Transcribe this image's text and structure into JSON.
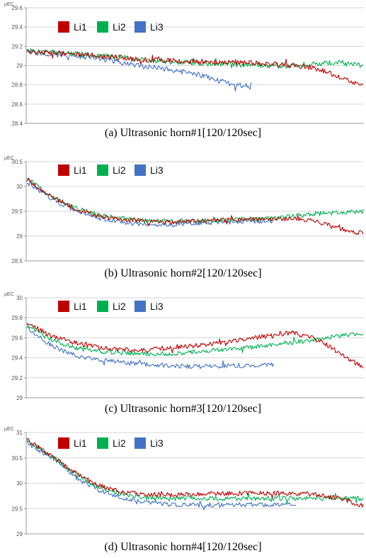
{
  "chart_data": [
    {
      "type": "line",
      "unit_label": "μEC",
      "caption": "(a) Ultrasonic horn#1[120/120sec]",
      "ylim": [
        28.4,
        29.6
      ],
      "yticks": [
        28.4,
        28.6,
        28.8,
        29,
        29.2,
        29.4,
        29.6
      ],
      "grid": true,
      "legend_position": "top-left",
      "series": [
        {
          "name": "Li1",
          "color": "#c00000",
          "values": [
            29.15,
            29.13,
            29.12,
            29.1,
            29.08,
            29.06,
            29.05,
            29.04,
            29.03,
            29.03,
            29.02,
            29.0,
            28.98,
            28.88,
            28.78
          ]
        },
        {
          "name": "Li2",
          "color": "#00b050",
          "values": [
            29.16,
            29.14,
            29.12,
            29.1,
            29.08,
            29.06,
            29.04,
            29.03,
            29.02,
            29.01,
            29.0,
            29.0,
            29.02,
            29.03,
            29.0
          ]
        },
        {
          "name": "Li3",
          "color": "#4472c4",
          "values": [
            29.14,
            29.12,
            29.1,
            29.07,
            29.02,
            28.98,
            28.95,
            28.9,
            28.82,
            28.78
          ]
        }
      ]
    },
    {
      "type": "line",
      "unit_label": "μEC",
      "caption": "(b) Ultrasonic horn#2[120/120sec]",
      "ylim": [
        28.5,
        30.5
      ],
      "yticks": [
        28.5,
        29,
        29.5,
        30,
        30.5
      ],
      "grid": true,
      "legend_position": "top-left",
      "series": [
        {
          "name": "Li1",
          "color": "#c00000",
          "values": [
            30.15,
            29.8,
            29.55,
            29.4,
            29.33,
            29.3,
            29.28,
            29.3,
            29.32,
            29.33,
            29.34,
            29.35,
            29.3,
            29.15,
            29.05
          ]
        },
        {
          "name": "Li2",
          "color": "#00b050",
          "values": [
            30.15,
            29.82,
            29.57,
            29.42,
            29.35,
            29.31,
            29.3,
            29.3,
            29.32,
            29.34,
            29.35,
            29.4,
            29.45,
            29.48,
            29.5
          ]
        },
        {
          "name": "Li3",
          "color": "#4472c4",
          "values": [
            30.1,
            29.75,
            29.5,
            29.35,
            29.27,
            29.23,
            29.23,
            29.25,
            29.28,
            29.3,
            29.3
          ]
        }
      ]
    },
    {
      "type": "line",
      "unit_label": "μEC",
      "caption": "(c) Ultrasonic horn#3[120/120sec]",
      "ylim": [
        29,
        30
      ],
      "yticks": [
        29,
        29.2,
        29.4,
        29.6,
        29.8,
        30
      ],
      "grid": true,
      "legend_position": "top-left",
      "series": [
        {
          "name": "Li1",
          "color": "#c00000",
          "values": [
            29.75,
            29.62,
            29.55,
            29.5,
            29.48,
            29.48,
            29.5,
            29.52,
            29.55,
            29.58,
            29.62,
            29.65,
            29.6,
            29.45,
            29.3
          ]
        },
        {
          "name": "Li2",
          "color": "#00b050",
          "values": [
            29.73,
            29.58,
            29.5,
            29.46,
            29.45,
            29.44,
            29.44,
            29.46,
            29.48,
            29.5,
            29.52,
            29.55,
            29.58,
            29.62,
            29.65
          ]
        },
        {
          "name": "Li3",
          "color": "#4472c4",
          "values": [
            29.7,
            29.52,
            29.42,
            29.38,
            29.35,
            29.33,
            29.32,
            29.31,
            29.32,
            29.32,
            29.33
          ]
        }
      ]
    },
    {
      "type": "line",
      "unit_label": "μEC",
      "caption": "(d) Ultrasonic horn#4[120/120sec]",
      "ylim": [
        29,
        31
      ],
      "yticks": [
        29,
        29.5,
        30,
        30.5,
        31
      ],
      "grid": true,
      "legend_position": "top-left",
      "series": [
        {
          "name": "Li1",
          "color": "#c00000",
          "values": [
            30.85,
            30.55,
            30.2,
            29.95,
            29.82,
            29.78,
            29.77,
            29.78,
            29.8,
            29.8,
            29.8,
            29.8,
            29.78,
            29.7,
            29.55
          ]
        },
        {
          "name": "Li2",
          "color": "#00b050",
          "values": [
            30.85,
            30.55,
            30.18,
            29.92,
            29.78,
            29.72,
            29.7,
            29.7,
            29.7,
            29.7,
            29.7,
            29.7,
            29.7,
            29.7,
            29.7
          ]
        },
        {
          "name": "Li3",
          "color": "#4472c4",
          "values": [
            30.8,
            30.5,
            30.12,
            29.85,
            29.7,
            29.62,
            29.58,
            29.57,
            29.57,
            29.58,
            29.58,
            29.6
          ]
        }
      ]
    }
  ]
}
